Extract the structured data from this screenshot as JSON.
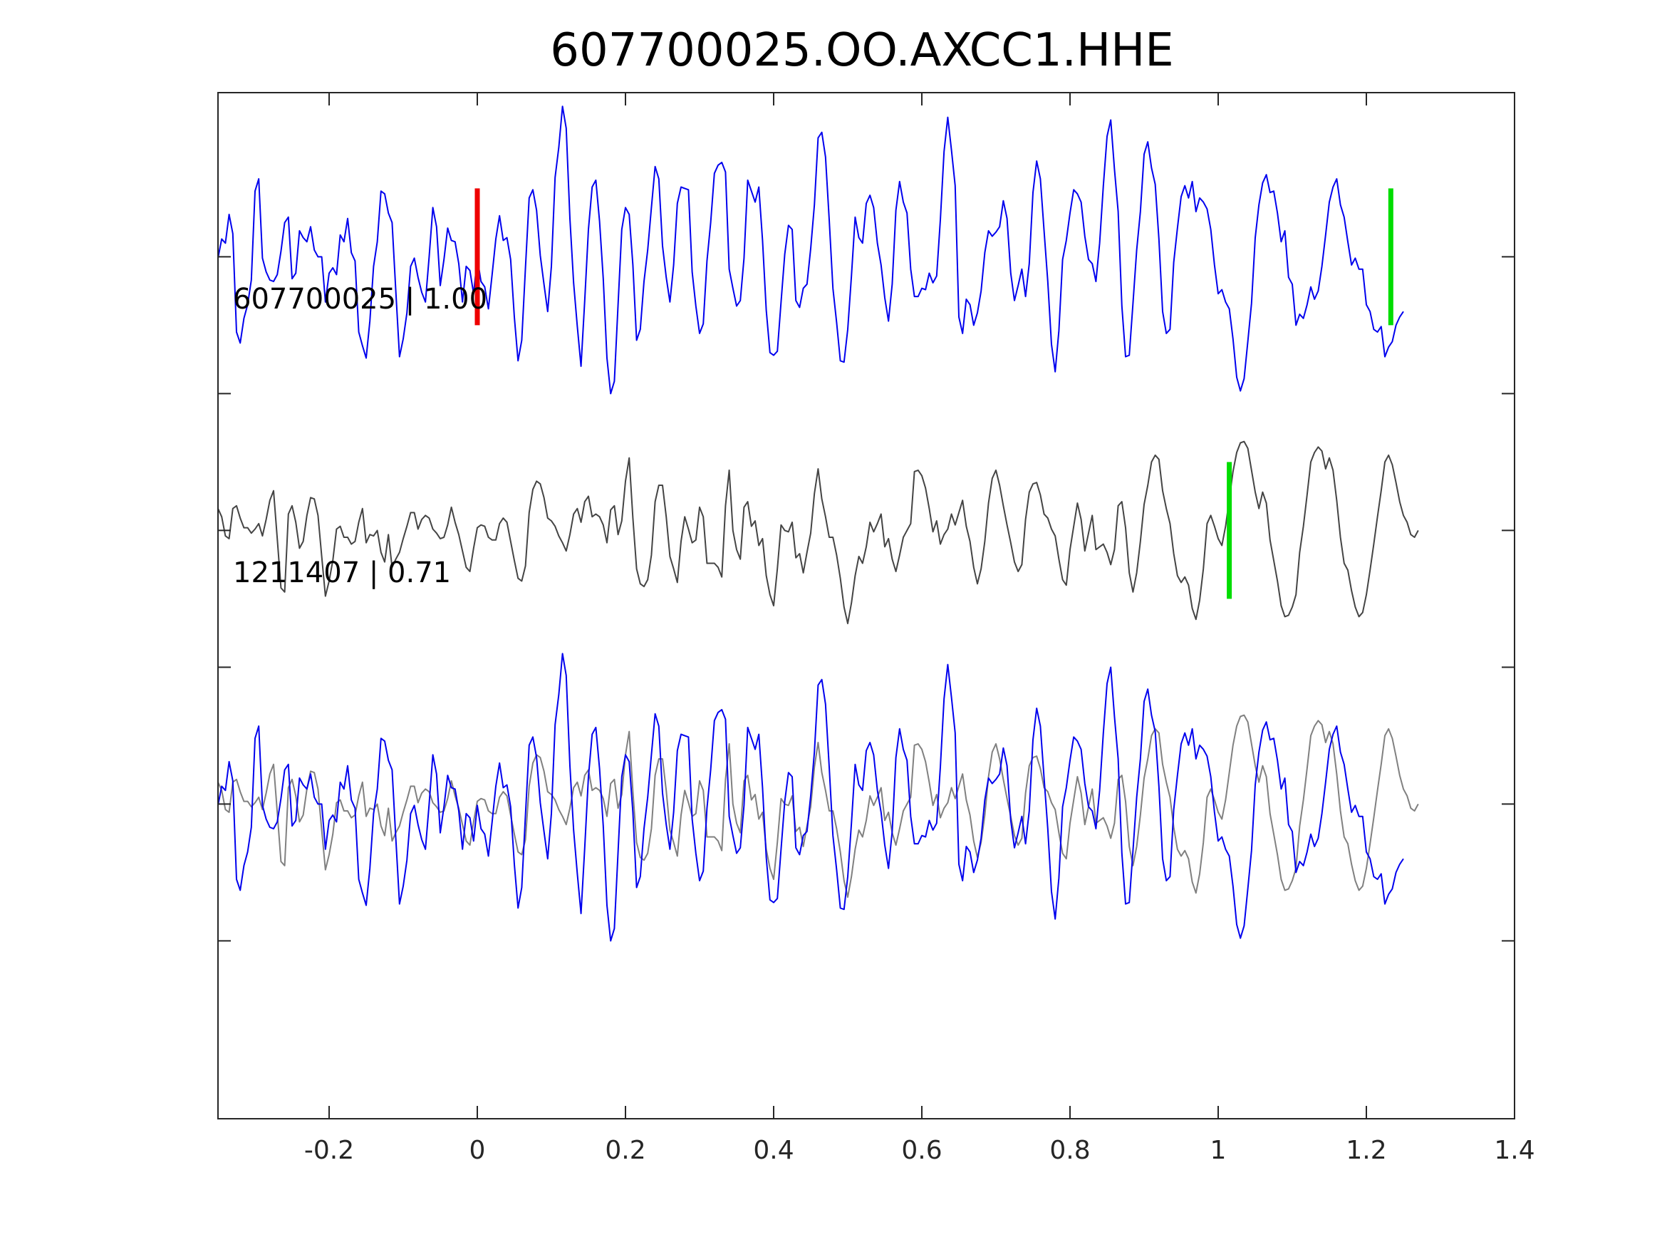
{
  "chart_data": {
    "type": "line",
    "title": "607700025.OO.AXCC1.HHE",
    "xlabel": "",
    "ylabel": "",
    "xlim": [
      -0.35,
      1.4
    ],
    "ylim": [
      -6.3,
      1.2
    ],
    "x_ticks": [
      -0.2,
      0,
      0.2,
      0.4,
      0.6,
      0.8,
      1,
      1.2,
      1.4
    ],
    "x_tick_labels": [
      "-0.2",
      "0",
      "0.2",
      "0.4",
      "0.6",
      "0.8",
      "1",
      "1.2",
      "1.4"
    ],
    "y_ticks": [
      0,
      -1,
      -2,
      -3,
      -4,
      -5
    ],
    "grid": false,
    "sample_interval": 0.005,
    "series": [
      {
        "name": "607700025",
        "label": "607700025 | 1.00",
        "color": "#0000ee",
        "offset": 0,
        "values": [
          -0.01,
          0.13,
          0.1,
          0.31,
          0.17,
          -0.55,
          -0.63,
          -0.45,
          -0.35,
          -0.17,
          0.48,
          0.57,
          -0.01,
          -0.11,
          -0.17,
          -0.18,
          -0.13,
          0.04,
          0.25,
          0.29,
          -0.16,
          -0.12,
          0.19,
          0.14,
          0.11,
          0.22,
          0.05,
          0.0,
          0.0,
          -0.33,
          -0.12,
          -0.08,
          -0.13,
          0.16,
          0.11,
          0.28,
          0.03,
          -0.03,
          -0.55,
          -0.65,
          -0.74,
          -0.47,
          -0.07,
          0.11,
          0.48,
          0.46,
          0.32,
          0.25,
          -0.25,
          -0.73,
          -0.6,
          -0.41,
          -0.07,
          -0.01,
          -0.15,
          -0.26,
          -0.33,
          0.0,
          0.36,
          0.22,
          -0.21,
          -0.02,
          0.21,
          0.12,
          0.11,
          -0.05,
          -0.33,
          -0.07,
          -0.1,
          -0.27,
          -0.01,
          -0.18,
          -0.22,
          -0.38,
          -0.13,
          0.13,
          0.3,
          0.12,
          0.14,
          -0.02,
          -0.44,
          -0.76,
          -0.61,
          -0.08,
          0.43,
          0.49,
          0.34,
          0.01,
          -0.2,
          -0.4,
          -0.07,
          0.58,
          0.8,
          1.1,
          0.94,
          0.28,
          -0.19,
          -0.51,
          -0.8,
          -0.32,
          0.2,
          0.51,
          0.56,
          0.26,
          -0.16,
          -0.74,
          -1.0,
          -0.91,
          -0.35,
          0.2,
          0.36,
          0.31,
          -0.06,
          -0.61,
          -0.53,
          -0.18,
          0.05,
          0.36,
          0.66,
          0.57,
          0.08,
          -0.15,
          -0.33,
          -0.06,
          0.39,
          0.51,
          0.5,
          0.49,
          -0.11,
          -0.36,
          -0.56,
          -0.49,
          -0.03,
          0.25,
          0.61,
          0.67,
          0.69,
          0.62,
          -0.09,
          -0.23,
          -0.36,
          -0.32,
          -0.01,
          0.56,
          0.48,
          0.4,
          0.51,
          0.12,
          -0.39,
          -0.7,
          -0.72,
          -0.69,
          -0.33,
          0.02,
          0.23,
          0.2,
          -0.32,
          -0.37,
          -0.23,
          -0.2,
          0.06,
          0.38,
          0.87,
          0.91,
          0.73,
          0.27,
          -0.23,
          -0.48,
          -0.76,
          -0.77,
          -0.53,
          -0.14,
          0.29,
          0.14,
          0.1,
          0.39,
          0.45,
          0.36,
          0.1,
          -0.06,
          -0.3,
          -0.47,
          -0.2,
          0.34,
          0.55,
          0.4,
          0.32,
          -0.09,
          -0.29,
          -0.29,
          -0.23,
          -0.24,
          -0.12,
          -0.19,
          -0.14,
          0.27,
          0.77,
          1.02,
          0.78,
          0.52,
          -0.44,
          -0.56,
          -0.31,
          -0.35,
          -0.5,
          -0.41,
          -0.25,
          0.03,
          0.19,
          0.15,
          0.18,
          0.22,
          0.41,
          0.28,
          -0.12,
          -0.32,
          -0.21,
          -0.09,
          -0.29,
          -0.05,
          0.47,
          0.7,
          0.57,
          0.19,
          -0.18,
          -0.64,
          -0.84,
          -0.54,
          -0.02,
          0.12,
          0.32,
          0.49,
          0.46,
          0.4,
          0.15,
          -0.02,
          -0.05,
          -0.18,
          0.1,
          0.52,
          0.88,
          1.0,
          0.64,
          0.33,
          -0.36,
          -0.73,
          -0.72,
          -0.34,
          0.05,
          0.33,
          0.75,
          0.84,
          0.65,
          0.53,
          0.13,
          -0.4,
          -0.56,
          -0.53,
          -0.04,
          0.21,
          0.44,
          0.52,
          0.43,
          0.55,
          0.33,
          0.43,
          0.4,
          0.35,
          0.2,
          -0.06,
          -0.27,
          -0.24,
          -0.33,
          -0.38,
          -0.6,
          -0.88,
          -0.98,
          -0.89,
          -0.62,
          -0.34,
          0.14,
          0.38,
          0.54,
          0.6,
          0.47,
          0.48,
          0.32,
          0.11,
          0.19,
          -0.15,
          -0.2,
          -0.5,
          -0.42,
          -0.45,
          -0.35,
          -0.22,
          -0.31,
          -0.25,
          -0.07,
          0.16,
          0.4,
          0.51,
          0.57,
          0.38,
          0.29,
          0.11,
          -0.06,
          -0.01,
          -0.09,
          -0.09,
          -0.35,
          -0.4,
          -0.53,
          -0.55,
          -0.51,
          -0.73,
          -0.66,
          -0.62,
          -0.5,
          -0.44,
          -0.4
        ]
      },
      {
        "name": "1211407",
        "label": "1211407 | 0.71",
        "color": "#444444",
        "offset": -2,
        "values": [
          0.16,
          0.1,
          -0.04,
          -0.06,
          0.16,
          0.18,
          0.09,
          0.02,
          0.02,
          -0.02,
          0.01,
          0.05,
          -0.04,
          0.08,
          0.22,
          0.29,
          -0.06,
          -0.42,
          -0.45,
          0.12,
          0.18,
          0.06,
          -0.13,
          -0.08,
          0.11,
          0.24,
          0.23,
          0.11,
          -0.19,
          -0.48,
          -0.37,
          -0.22,
          0.01,
          0.03,
          -0.05,
          -0.05,
          -0.1,
          -0.08,
          0.06,
          0.16,
          -0.09,
          -0.03,
          -0.04,
          0.0,
          -0.16,
          -0.23,
          -0.03,
          -0.27,
          -0.21,
          -0.16,
          -0.06,
          0.03,
          0.13,
          0.13,
          0.01,
          0.08,
          0.11,
          0.09,
          0.01,
          -0.02,
          -0.06,
          -0.05,
          0.04,
          0.17,
          0.06,
          -0.03,
          -0.15,
          -0.27,
          -0.3,
          -0.13,
          0.02,
          0.04,
          0.03,
          -0.05,
          -0.07,
          -0.07,
          0.05,
          0.09,
          0.06,
          -0.08,
          -0.22,
          -0.35,
          -0.37,
          -0.26,
          0.13,
          0.3,
          0.36,
          0.34,
          0.24,
          0.09,
          0.07,
          0.03,
          -0.04,
          -0.09,
          -0.15,
          -0.03,
          0.12,
          0.16,
          0.06,
          0.21,
          0.25,
          0.1,
          0.12,
          0.1,
          0.04,
          -0.09,
          0.15,
          0.18,
          -0.03,
          0.07,
          0.36,
          0.53,
          0.09,
          -0.28,
          -0.39,
          -0.41,
          -0.36,
          -0.18,
          0.21,
          0.33,
          0.33,
          0.1,
          -0.19,
          -0.28,
          -0.38,
          -0.08,
          0.1,
          0.01,
          -0.09,
          -0.07,
          0.17,
          0.1,
          -0.24,
          -0.24,
          -0.24,
          -0.27,
          -0.34,
          0.18,
          0.44,
          0.0,
          -0.14,
          -0.21,
          0.17,
          0.21,
          0.03,
          0.07,
          -0.11,
          -0.06,
          -0.33,
          -0.47,
          -0.55,
          -0.28,
          0.04,
          0.0,
          -0.01,
          0.06,
          -0.2,
          -0.17,
          -0.31,
          -0.16,
          -0.02,
          0.27,
          0.45,
          0.23,
          0.1,
          -0.05,
          -0.05,
          -0.18,
          -0.35,
          -0.56,
          -0.68,
          -0.53,
          -0.33,
          -0.19,
          -0.24,
          -0.12,
          0.06,
          -0.01,
          0.05,
          0.12,
          -0.12,
          -0.06,
          -0.21,
          -0.3,
          -0.18,
          -0.05,
          0.0,
          0.05,
          0.43,
          0.44,
          0.4,
          0.31,
          0.16,
          -0.01,
          0.07,
          -0.1,
          -0.03,
          0.01,
          0.12,
          0.04,
          0.13,
          0.22,
          0.03,
          -0.08,
          -0.27,
          -0.39,
          -0.28,
          -0.08,
          0.2,
          0.38,
          0.44,
          0.33,
          0.18,
          0.04,
          -0.09,
          -0.23,
          -0.3,
          -0.25,
          0.08,
          0.28,
          0.34,
          0.35,
          0.26,
          0.12,
          0.09,
          0.01,
          -0.04,
          -0.21,
          -0.36,
          -0.4,
          -0.14,
          0.03,
          0.2,
          0.08,
          -0.15,
          -0.02,
          0.11,
          -0.14,
          -0.12,
          -0.1,
          -0.16,
          -0.25,
          -0.14,
          0.18,
          0.21,
          0.02,
          -0.31,
          -0.45,
          -0.31,
          -0.08,
          0.19,
          0.33,
          0.5,
          0.55,
          0.52,
          0.29,
          0.16,
          0.05,
          -0.17,
          -0.33,
          -0.38,
          -0.34,
          -0.4,
          -0.57,
          -0.65,
          -0.51,
          -0.28,
          0.05,
          0.11,
          0.03,
          -0.06,
          -0.11,
          0.03,
          0.23,
          0.43,
          0.57,
          0.64,
          0.65,
          0.6,
          0.44,
          0.28,
          0.16,
          0.28,
          0.2,
          -0.07,
          -0.22,
          -0.37,
          -0.55,
          -0.63,
          -0.62,
          -0.56,
          -0.47,
          -0.16,
          0.03,
          0.26,
          0.5,
          0.57,
          0.61,
          0.58,
          0.45,
          0.53,
          0.44,
          0.22,
          -0.05,
          -0.24,
          -0.29,
          -0.44,
          -0.56,
          -0.63,
          -0.6,
          -0.47,
          -0.29,
          -0.1,
          0.1,
          0.29,
          0.5,
          0.55,
          0.48,
          0.35,
          0.21,
          0.11,
          0.06,
          -0.03,
          -0.05,
          0.0
        ]
      },
      {
        "name": "overlay-607700025",
        "color": "#0000ee",
        "offset": -4,
        "ref": 0
      },
      {
        "name": "overlay-1211407",
        "color": "#808080",
        "offset": -4,
        "ref": 1
      }
    ],
    "markers": [
      {
        "x": 0.0,
        "trace": 0,
        "color": "#ee0000"
      },
      {
        "x": 1.233,
        "trace": 0,
        "color": "#00dd00"
      },
      {
        "x": 1.015,
        "trace": 1,
        "color": "#00dd00"
      }
    ]
  }
}
